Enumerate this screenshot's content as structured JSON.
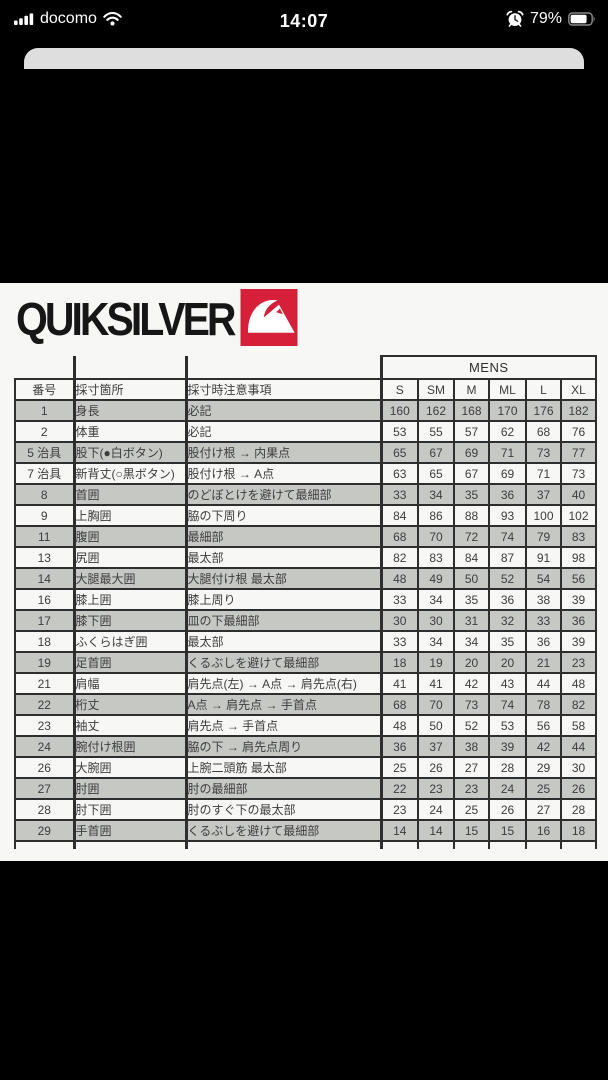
{
  "status_bar": {
    "carrier": "docomo",
    "time": "14:07",
    "battery_percent": "79%",
    "icons": [
      "signal-strength-icon",
      "wifi-icon",
      "alarm-icon",
      "battery-icon"
    ]
  },
  "logo": {
    "brand": "QUIKSILVER",
    "mark": "quiksilver-mountain-wave-logo",
    "mark_color": "#d6203a"
  },
  "colors": {
    "photo_background": "#f7f7f5",
    "row_gray": "#c6c8c4",
    "table_border": "#2e2e2e",
    "logo_red": "#d6203a"
  },
  "table": {
    "group_header": "MENS",
    "columns": [
      "番号",
      "採寸箇所",
      "採寸時注意事項",
      "S",
      "SM",
      "M",
      "ML",
      "L",
      "XL"
    ],
    "rows": [
      {
        "no": "1",
        "part": "身長",
        "note": "必記",
        "values": [
          160,
          162,
          168,
          170,
          176,
          182
        ]
      },
      {
        "no": "2",
        "part": "体重",
        "note": "必記",
        "values": [
          53,
          55,
          57,
          62,
          68,
          76
        ]
      },
      {
        "no": "5 治具",
        "part": "股下(●白ボタン)",
        "note": "股付け根 → 内果点",
        "values": [
          65,
          67,
          69,
          71,
          73,
          77
        ]
      },
      {
        "no": "7 治具",
        "part": "新背丈(○黒ボタン)",
        "note": "股付け根 → A点",
        "values": [
          63,
          65,
          67,
          69,
          71,
          73
        ]
      },
      {
        "no": "8",
        "part": "首囲",
        "note": "のどぼとけを避けて最細部",
        "values": [
          33,
          34,
          35,
          36,
          37,
          40
        ]
      },
      {
        "no": "9",
        "part": "上胸囲",
        "note": "脇の下周り",
        "values": [
          84,
          86,
          88,
          93,
          100,
          102
        ]
      },
      {
        "no": "11",
        "part": "腹囲",
        "note": "最細部",
        "values": [
          68,
          70,
          72,
          74,
          79,
          83
        ]
      },
      {
        "no": "13",
        "part": "尻囲",
        "note": "最太部",
        "values": [
          82,
          83,
          84,
          87,
          91,
          98
        ]
      },
      {
        "no": "14",
        "part": "大腿最大囲",
        "note": "大腿付け根 最太部",
        "values": [
          48,
          49,
          50,
          52,
          54,
          56
        ]
      },
      {
        "no": "16",
        "part": "膝上囲",
        "note": "膝上周り",
        "values": [
          33,
          34,
          35,
          36,
          38,
          39
        ]
      },
      {
        "no": "17",
        "part": "膝下囲",
        "note": "皿の下最細部",
        "values": [
          30,
          30,
          31,
          32,
          33,
          36
        ]
      },
      {
        "no": "18",
        "part": "ふくらはぎ囲",
        "note": "最太部",
        "values": [
          33,
          34,
          34,
          35,
          36,
          39
        ]
      },
      {
        "no": "19",
        "part": "足首囲",
        "note": "くるぶしを避けて最細部",
        "values": [
          18,
          19,
          20,
          20,
          21,
          23
        ]
      },
      {
        "no": "21",
        "part": "肩幅",
        "note": "肩先点(左) → A点 → 肩先点(右)",
        "values": [
          41,
          41,
          42,
          43,
          44,
          48
        ]
      },
      {
        "no": "22",
        "part": "桁丈",
        "note": "A点 → 肩先点 → 手首点",
        "values": [
          68,
          70,
          73,
          74,
          78,
          82
        ]
      },
      {
        "no": "23",
        "part": "袖丈",
        "note": "肩先点 → 手首点",
        "values": [
          48,
          50,
          52,
          53,
          56,
          58
        ]
      },
      {
        "no": "24",
        "part": "腕付け根囲",
        "note": "脇の下 → 肩先点周り",
        "values": [
          36,
          37,
          38,
          39,
          42,
          44
        ]
      },
      {
        "no": "26",
        "part": "大腕囲",
        "note": "上腕二頭筋  最太部",
        "values": [
          25,
          26,
          27,
          28,
          29,
          30
        ]
      },
      {
        "no": "27",
        "part": "肘囲",
        "note": "肘の最細部",
        "values": [
          22,
          23,
          23,
          24,
          25,
          26
        ]
      },
      {
        "no": "28",
        "part": "肘下囲",
        "note": "肘のすぐ下の最太部",
        "values": [
          23,
          24,
          25,
          26,
          27,
          28
        ]
      },
      {
        "no": "29",
        "part": "手首囲",
        "note": "くるぶしを避けて最細部",
        "values": [
          14,
          14,
          15,
          15,
          16,
          18
        ]
      }
    ]
  }
}
